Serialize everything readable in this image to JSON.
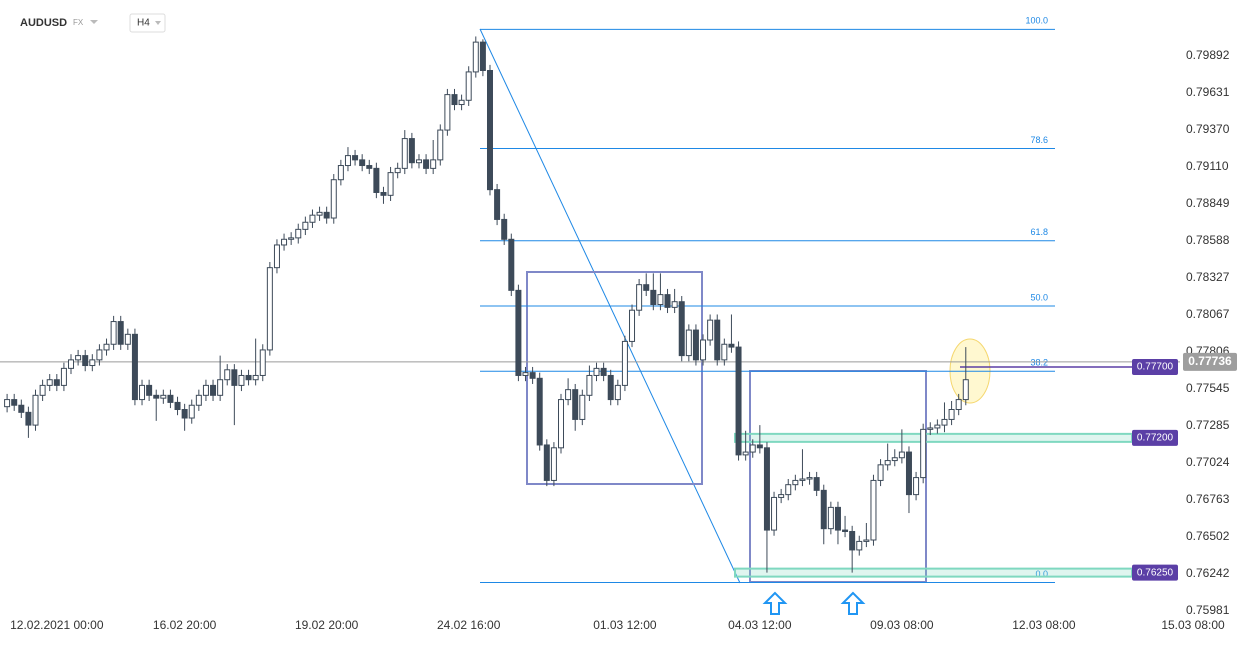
{
  "chart_data": {
    "type": "candlestick",
    "symbol": "AUDUSD",
    "market": "FX",
    "timeframe": "H4",
    "up_color": "#ffffff",
    "down_color": "#3d4a59",
    "xlim": [
      -1,
      174.6
    ],
    "ylim": [
      0.75916,
      0.80287
    ],
    "xticks": [
      {
        "value": 7,
        "label": "12.02.2021  00:00"
      },
      {
        "value": 25,
        "label": "16.02  20:00"
      },
      {
        "value": 45,
        "label": "19.02  20:00"
      },
      {
        "value": 65,
        "label": "24.02  16:00"
      },
      {
        "value": 87,
        "label": "01.03  12:00"
      },
      {
        "value": 106,
        "label": "04.03  12:00"
      },
      {
        "value": 126,
        "label": "09.03  08:00"
      },
      {
        "value": 146,
        "label": "12.03  08:00"
      },
      {
        "value": 167,
        "label": "15.03  08:00"
      }
    ],
    "yticks": [
      0.79892,
      0.79631,
      {
        "value": 0.7937,
        "label": "0.79370"
      },
      {
        "value": 0.7911,
        "label": "0.79110"
      },
      0.78849,
      0.78588,
      0.78327,
      0.78067,
      0.77806,
      0.77545,
      0.77285,
      0.77024,
      0.76763,
      0.76502,
      0.76242,
      0.75981
    ],
    "open": [
      0.7742,
      0.7747,
      0.7743,
      0.7738,
      0.7729,
      0.775,
      0.7757,
      0.7761,
      0.7757,
      0.7769,
      0.7775,
      0.7778,
      0.7771,
      0.7775,
      0.7782,
      0.7786,
      0.7802,
      0.7786,
      0.7793,
      0.7747,
      0.7757,
      0.775,
      0.7748,
      0.775,
      0.7745,
      0.774,
      0.7734,
      0.7743,
      0.775,
      0.7757,
      0.775,
      0.7761,
      0.7768,
      0.7757,
      0.7764,
      0.7761,
      0.7764,
      0.7782,
      0.784,
      0.7856,
      0.786,
      0.7861,
      0.7867,
      0.7872,
      0.7877,
      0.7879,
      0.7875,
      0.7902,
      0.7912,
      0.7919,
      0.7916,
      0.7912,
      0.791,
      0.7893,
      0.7891,
      0.7907,
      0.791,
      0.7931,
      0.7914,
      0.7916,
      0.791,
      0.7916,
      0.7937,
      0.7962,
      0.7955,
      0.7958,
      0.7978,
      0.7999,
      0.7979,
      0.7895,
      0.7874,
      0.786,
      0.7824,
      0.7764,
      0.7766,
      0.7762,
      0.7715,
      0.769,
      0.7713,
      0.7747,
      0.7754,
      0.7733,
      0.775,
      0.7764,
      0.7769,
      0.7764,
      0.7747,
      0.7757,
      0.7788,
      0.781,
      0.7828,
      0.7824,
      0.7814,
      0.7821,
      0.7812,
      0.7816,
      0.7778,
      0.7796,
      0.7775,
      0.7789,
      0.7803,
      0.7775,
      0.7786,
      0.7784,
      0.7708,
      0.771,
      0.7715,
      0.7713,
      0.7655,
      0.7678,
      0.768,
      0.7687,
      0.769,
      0.7691,
      0.7692,
      0.7683,
      0.7656,
      0.7671,
      0.7655,
      0.7654,
      0.7641,
      0.7647,
      0.7648,
      0.769,
      0.7701,
      0.7704,
      0.7706,
      0.771,
      0.768,
      0.7692,
      0.7726,
      0.7727,
      0.7729,
      0.7733,
      0.774,
      0.7747
    ],
    "high": [
      0.7751,
      0.7751,
      0.7747,
      0.7742,
      0.7754,
      0.7761,
      0.7765,
      0.7765,
      0.7773,
      0.7779,
      0.7782,
      0.7782,
      0.7779,
      0.7786,
      0.779,
      0.7806,
      0.7806,
      0.7797,
      0.7797,
      0.7761,
      0.7761,
      0.7754,
      0.7754,
      0.7754,
      0.7749,
      0.7744,
      0.7747,
      0.7754,
      0.7761,
      0.7761,
      0.7778,
      0.7772,
      0.7772,
      0.7768,
      0.7768,
      0.779,
      0.7786,
      0.7844,
      0.786,
      0.7864,
      0.7865,
      0.7871,
      0.7876,
      0.7881,
      0.7883,
      0.7883,
      0.7906,
      0.7916,
      0.7925,
      0.7923,
      0.792,
      0.7916,
      0.7914,
      0.7897,
      0.7911,
      0.7914,
      0.7937,
      0.7935,
      0.792,
      0.792,
      0.793,
      0.7941,
      0.7966,
      0.7966,
      0.7962,
      0.7982,
      0.8003,
      0.8001,
      0.7983,
      0.7899,
      0.7878,
      0.7864,
      0.7828,
      0.777,
      0.777,
      0.7766,
      0.7719,
      0.7717,
      0.7751,
      0.7762,
      0.7758,
      0.7754,
      0.7771,
      0.7773,
      0.7773,
      0.7768,
      0.7761,
      0.7792,
      0.7814,
      0.7832,
      0.7836,
      0.7836,
      0.7836,
      0.7825,
      0.7825,
      0.782,
      0.78,
      0.78,
      0.7793,
      0.7807,
      0.7807,
      0.779,
      0.7807,
      0.7788,
      0.7725,
      0.7719,
      0.7729,
      0.7717,
      0.7682,
      0.7684,
      0.7691,
      0.7694,
      0.7712,
      0.7696,
      0.7696,
      0.7687,
      0.7675,
      0.7675,
      0.7665,
      0.7658,
      0.7651,
      0.766,
      0.7694,
      0.7705,
      0.7716,
      0.7712,
      0.7726,
      0.7714,
      0.7696,
      0.773,
      0.7731,
      0.7733,
      0.7745,
      0.7746,
      0.7751,
      0.7784
    ],
    "low": [
      0.7738,
      0.7739,
      0.7734,
      0.772,
      0.7725,
      0.7746,
      0.7753,
      0.7753,
      0.7753,
      0.7765,
      0.7771,
      0.7767,
      0.7767,
      0.7771,
      0.7778,
      0.7782,
      0.7782,
      0.7782,
      0.7743,
      0.7743,
      0.7746,
      0.7732,
      0.7744,
      0.7741,
      0.7736,
      0.7725,
      0.773,
      0.7739,
      0.7746,
      0.7746,
      0.7746,
      0.7757,
      0.7729,
      0.7753,
      0.7757,
      0.7757,
      0.776,
      0.7778,
      0.7836,
      0.7852,
      0.7856,
      0.7857,
      0.7863,
      0.7868,
      0.7873,
      0.7871,
      0.7871,
      0.7898,
      0.7908,
      0.7912,
      0.7908,
      0.7906,
      0.7889,
      0.7885,
      0.7887,
      0.7903,
      0.7906,
      0.791,
      0.791,
      0.7906,
      0.7906,
      0.7912,
      0.7933,
      0.7951,
      0.7951,
      0.7954,
      0.7974,
      0.7975,
      0.7891,
      0.787,
      0.7856,
      0.782,
      0.776,
      0.776,
      0.7758,
      0.7711,
      0.7686,
      0.7686,
      0.7709,
      0.7743,
      0.7725,
      0.7729,
      0.7746,
      0.776,
      0.776,
      0.7743,
      0.7743,
      0.7753,
      0.7784,
      0.7806,
      0.782,
      0.781,
      0.781,
      0.7808,
      0.7808,
      0.7774,
      0.7774,
      0.7771,
      0.7771,
      0.7785,
      0.7771,
      0.7771,
      0.778,
      0.7704,
      0.7704,
      0.7706,
      0.7709,
      0.7625,
      0.7651,
      0.7674,
      0.7676,
      0.7683,
      0.7686,
      0.7687,
      0.7679,
      0.7645,
      0.7652,
      0.7645,
      0.765,
      0.7625,
      0.7637,
      0.7643,
      0.7644,
      0.7686,
      0.7697,
      0.77,
      0.7702,
      0.7667,
      0.7676,
      0.7688,
      0.7722,
      0.7723,
      0.7724,
      0.7729,
      0.7736,
      0.7743
    ],
    "close": [
      0.7747,
      0.7743,
      0.7738,
      0.7729,
      0.775,
      0.7757,
      0.7761,
      0.7757,
      0.7769,
      0.7775,
      0.7778,
      0.7771,
      0.7775,
      0.7782,
      0.7786,
      0.7802,
      0.7786,
      0.7793,
      0.7747,
      0.7757,
      0.775,
      0.7748,
      0.775,
      0.7745,
      0.774,
      0.7734,
      0.7743,
      0.775,
      0.7757,
      0.775,
      0.7761,
      0.7768,
      0.7757,
      0.7764,
      0.7761,
      0.7764,
      0.7782,
      0.784,
      0.7856,
      0.786,
      0.7861,
      0.7867,
      0.7872,
      0.7877,
      0.7879,
      0.7875,
      0.7902,
      0.7912,
      0.7919,
      0.7916,
      0.7912,
      0.791,
      0.7893,
      0.7891,
      0.7907,
      0.791,
      0.7931,
      0.7914,
      0.7916,
      0.791,
      0.7916,
      0.7937,
      0.7962,
      0.7955,
      0.7958,
      0.7978,
      0.7999,
      0.7979,
      0.7895,
      0.7874,
      0.786,
      0.7824,
      0.7764,
      0.7766,
      0.7762,
      0.7715,
      0.769,
      0.7713,
      0.7747,
      0.7754,
      0.7733,
      0.775,
      0.7764,
      0.7769,
      0.7764,
      0.7747,
      0.7757,
      0.7788,
      0.781,
      0.7828,
      0.7824,
      0.7814,
      0.7821,
      0.7812,
      0.7816,
      0.7778,
      0.7796,
      0.7775,
      0.7789,
      0.7803,
      0.7775,
      0.7786,
      0.7784,
      0.7708,
      0.771,
      0.7715,
      0.7713,
      0.7655,
      0.7678,
      0.768,
      0.7687,
      0.769,
      0.7691,
      0.7692,
      0.7683,
      0.7656,
      0.7671,
      0.7655,
      0.7654,
      0.7641,
      0.7647,
      0.7648,
      0.769,
      0.7701,
      0.7704,
      0.7706,
      0.771,
      0.768,
      0.7692,
      0.7726,
      0.7727,
      0.7729,
      0.7733,
      0.774,
      0.7747,
      0.7761
    ],
    "fib_color": "#1e88e5",
    "fib_levels": [
      {
        "level": "100.0",
        "price": 0.8008
      },
      {
        "level": "78.6",
        "price": 0.7924
      },
      {
        "level": "61.8",
        "price": 0.7859
      },
      {
        "level": "50.0",
        "price": 0.7813
      },
      {
        "level": "38.2",
        "price": 0.7767
      },
      {
        "level": "0.0",
        "price": 0.7618
      }
    ],
    "price_levels": [
      {
        "value": 0.777,
        "label": "0.77700"
      },
      {
        "value": 0.772,
        "label": "0.77200"
      },
      {
        "value": 0.7625,
        "label": "0.76250"
      }
    ],
    "level_color": "#5b3fa6",
    "current_price": 0.77736
  }
}
